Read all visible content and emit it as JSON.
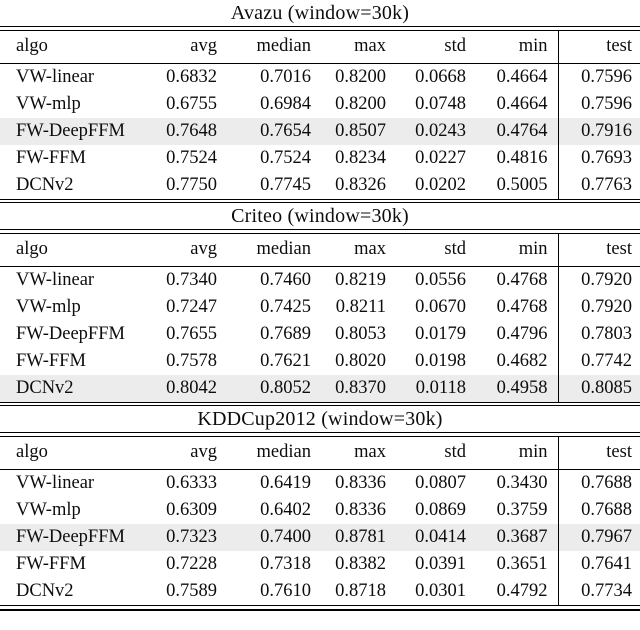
{
  "colors": {
    "highlight": "#ececec",
    "rule": "#000000",
    "text": "#0d0d0d"
  },
  "column_keys": [
    "algo",
    "avg",
    "median",
    "max",
    "std",
    "min",
    "test"
  ],
  "tables": [
    {
      "title": "Avazu (window=30k)",
      "columns": [
        "algo",
        "avg",
        "median",
        "max",
        "std",
        "min",
        "test"
      ],
      "rows": [
        {
          "algo": "VW-linear",
          "avg": "0.6832",
          "median": "0.7016",
          "max": "0.8200",
          "std": "0.0668",
          "min": "0.4664",
          "test": "0.7596",
          "highlight": false
        },
        {
          "algo": "VW-mlp",
          "avg": "0.6755",
          "median": "0.6984",
          "max": "0.8200",
          "std": "0.0748",
          "min": "0.4664",
          "test": "0.7596",
          "highlight": false
        },
        {
          "algo": "FW-DeepFFM",
          "avg": "0.7648",
          "median": "0.7654",
          "max": "0.8507",
          "std": "0.0243",
          "min": "0.4764",
          "test": "0.7916",
          "highlight": true
        },
        {
          "algo": "FW-FFM",
          "avg": "0.7524",
          "median": "0.7524",
          "max": "0.8234",
          "std": "0.0227",
          "min": "0.4816",
          "test": "0.7693",
          "highlight": false
        },
        {
          "algo": "DCNv2",
          "avg": "0.7750",
          "median": "0.7745",
          "max": "0.8326",
          "std": "0.0202",
          "min": "0.5005",
          "test": "0.7763",
          "highlight": false
        }
      ]
    },
    {
      "title": "Criteo (window=30k)",
      "columns": [
        "algo",
        "avg",
        "median",
        "max",
        "std",
        "min",
        "test"
      ],
      "rows": [
        {
          "algo": "VW-linear",
          "avg": "0.7340",
          "median": "0.7460",
          "max": "0.8219",
          "std": "0.0556",
          "min": "0.4768",
          "test": "0.7920",
          "highlight": false
        },
        {
          "algo": "VW-mlp",
          "avg": "0.7247",
          "median": "0.7425",
          "max": "0.8211",
          "std": "0.0670",
          "min": "0.4768",
          "test": "0.7920",
          "highlight": false
        },
        {
          "algo": "FW-DeepFFM",
          "avg": "0.7655",
          "median": "0.7689",
          "max": "0.8053",
          "std": "0.0179",
          "min": "0.4796",
          "test": "0.7803",
          "highlight": false
        },
        {
          "algo": "FW-FFM",
          "avg": "0.7578",
          "median": "0.7621",
          "max": "0.8020",
          "std": "0.0198",
          "min": "0.4682",
          "test": "0.7742",
          "highlight": false
        },
        {
          "algo": "DCNv2",
          "avg": "0.8042",
          "median": "0.8052",
          "max": "0.8370",
          "std": "0.0118",
          "min": "0.4958",
          "test": "0.8085",
          "highlight": true
        }
      ]
    },
    {
      "title": "KDDCup2012 (window=30k)",
      "columns": [
        "algo",
        "avg",
        "median",
        "max",
        "std",
        "min",
        "test"
      ],
      "rows": [
        {
          "algo": "VW-linear",
          "avg": "0.6333",
          "median": "0.6419",
          "max": "0.8336",
          "std": "0.0807",
          "min": "0.3430",
          "test": "0.7688",
          "highlight": false
        },
        {
          "algo": "VW-mlp",
          "avg": "0.6309",
          "median": "0.6402",
          "max": "0.8336",
          "std": "0.0869",
          "min": "0.3759",
          "test": "0.7688",
          "highlight": false
        },
        {
          "algo": "FW-DeepFFM",
          "avg": "0.7323",
          "median": "0.7400",
          "max": "0.8781",
          "std": "0.0414",
          "min": "0.3687",
          "test": "0.7967",
          "highlight": true
        },
        {
          "algo": "FW-FFM",
          "avg": "0.7228",
          "median": "0.7318",
          "max": "0.8382",
          "std": "0.0391",
          "min": "0.3651",
          "test": "0.7641",
          "highlight": false
        },
        {
          "algo": "DCNv2",
          "avg": "0.7589",
          "median": "0.7610",
          "max": "0.8718",
          "std": "0.0301",
          "min": "0.4792",
          "test": "0.7734",
          "highlight": false
        }
      ]
    }
  ]
}
